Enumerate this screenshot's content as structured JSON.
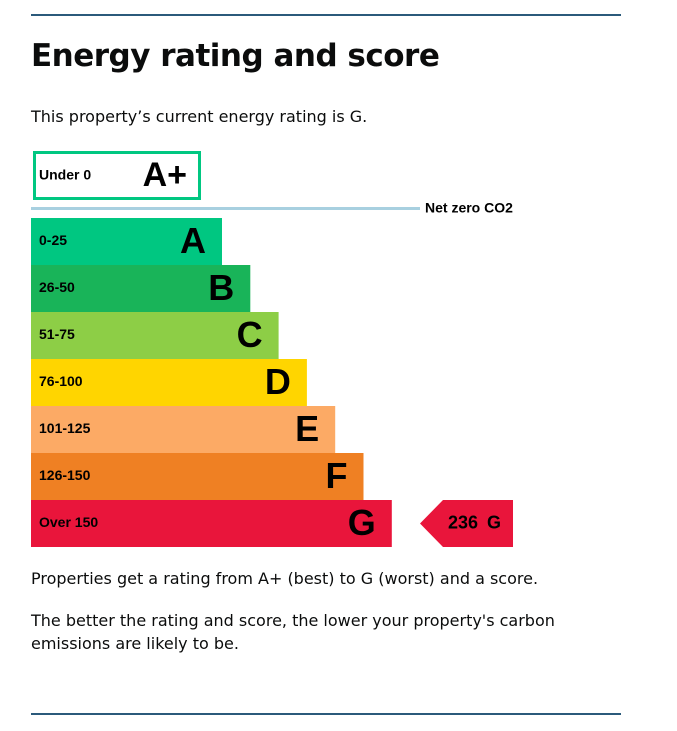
{
  "header": {
    "title": "Energy rating and score",
    "intro": "This property’s current energy rating is G."
  },
  "scale": {
    "net_zero_label": "Net zero CO2",
    "bands": [
      {
        "range": "Under 0",
        "letter": "A+",
        "color": "#00c781"
      },
      {
        "range": "0-25",
        "letter": "A",
        "color": "#00c781"
      },
      {
        "range": "26-50",
        "letter": "B",
        "color": "#19b459"
      },
      {
        "range": "51-75",
        "letter": "C",
        "color": "#8dce46"
      },
      {
        "range": "76-100",
        "letter": "D",
        "color": "#ffd500"
      },
      {
        "range": "101-125",
        "letter": "E",
        "color": "#fcaa65"
      },
      {
        "range": "126-150",
        "letter": "F",
        "color": "#ef8023"
      },
      {
        "range": "Over 150",
        "letter": "G",
        "color": "#e9153b"
      }
    ],
    "current": {
      "score": 236,
      "letter": "G",
      "band": 7
    }
  },
  "notes": [
    "Properties get a rating from A+ (best) to G (worst) and a score.",
    "The better the rating and score, the lower your property's carbon emissions are likely to be."
  ]
}
